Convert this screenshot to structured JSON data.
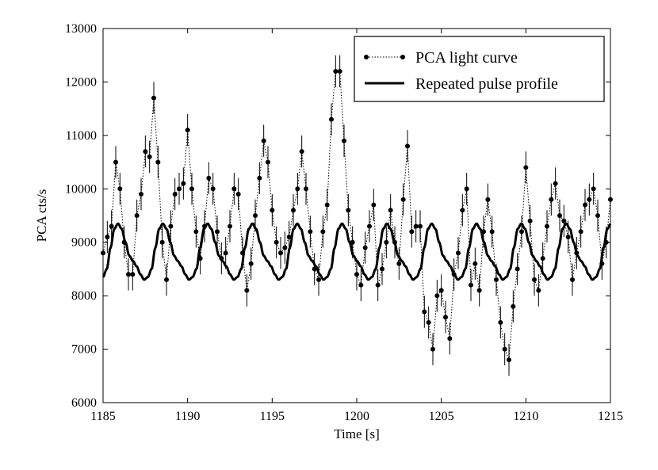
{
  "chart_data": {
    "type": "line",
    "title": "",
    "xlabel": "Time [s]",
    "ylabel": "PCA cts/s",
    "xlim": [
      1185,
      1215
    ],
    "ylim": [
      6000,
      13000
    ],
    "xticks": [
      1185,
      1190,
      1195,
      1200,
      1205,
      1210,
      1215
    ],
    "yticks": [
      6000,
      7000,
      8000,
      9000,
      10000,
      11000,
      12000,
      13000
    ],
    "legend_position": "top-right",
    "series": [
      {
        "name": "PCA light curve",
        "style": "dotted line with filled circle markers and error bars",
        "error": 300,
        "x": [
          1185.0,
          1185.25,
          1185.5,
          1185.75,
          1186.0,
          1186.25,
          1186.5,
          1186.75,
          1187.0,
          1187.25,
          1187.5,
          1187.75,
          1188.0,
          1188.25,
          1188.5,
          1188.75,
          1189.0,
          1189.25,
          1189.5,
          1189.75,
          1190.0,
          1190.25,
          1190.5,
          1190.75,
          1191.0,
          1191.25,
          1191.5,
          1191.75,
          1192.0,
          1192.25,
          1192.5,
          1192.75,
          1193.0,
          1193.25,
          1193.5,
          1193.75,
          1194.0,
          1194.25,
          1194.5,
          1194.75,
          1195.0,
          1195.25,
          1195.5,
          1195.75,
          1196.0,
          1196.25,
          1196.5,
          1196.75,
          1197.0,
          1197.25,
          1197.5,
          1197.75,
          1198.0,
          1198.25,
          1198.5,
          1198.75,
          1199.0,
          1199.25,
          1199.5,
          1199.75,
          1200.0,
          1200.25,
          1200.5,
          1200.75,
          1201.0,
          1201.25,
          1201.5,
          1201.75,
          1202.0,
          1202.25,
          1202.5,
          1202.75,
          1203.0,
          1203.25,
          1203.5,
          1203.75,
          1204.0,
          1204.25,
          1204.5,
          1204.75,
          1205.0,
          1205.25,
          1205.5,
          1205.75,
          1206.0,
          1206.25,
          1206.5,
          1206.75,
          1207.0,
          1207.25,
          1207.5,
          1207.75,
          1208.0,
          1208.25,
          1208.5,
          1208.75,
          1209.0,
          1209.25,
          1209.5,
          1209.75,
          1210.0,
          1210.25,
          1210.5,
          1210.75,
          1211.0,
          1211.25,
          1211.5,
          1211.75,
          1212.0,
          1212.25,
          1212.5,
          1212.75,
          1213.0,
          1213.25,
          1213.5,
          1213.75,
          1214.0,
          1214.25,
          1214.5,
          1214.75,
          1215.0
        ],
        "y": [
          8800,
          9100,
          9300,
          10500,
          10000,
          9000,
          8400,
          8400,
          9500,
          9900,
          10700,
          10600,
          11700,
          10500,
          9000,
          8300,
          9300,
          9900,
          10000,
          10100,
          11100,
          10000,
          9200,
          8700,
          9300,
          10200,
          10000,
          9200,
          8700,
          8800,
          9300,
          10000,
          9900,
          8800,
          8100,
          8600,
          9500,
          10200,
          10900,
          10500,
          9600,
          9000,
          8800,
          8900,
          9100,
          9600,
          10000,
          10700,
          10000,
          9200,
          8500,
          8300,
          9200,
          9700,
          11300,
          12200,
          12200,
          10900,
          9600,
          9000,
          8400,
          8200,
          8900,
          9300,
          9700,
          8200,
          8500,
          9000,
          9600,
          9000,
          8600,
          9800,
          10800,
          9200,
          9300,
          9300,
          7700,
          7500,
          7000,
          8000,
          8100,
          7600,
          7200,
          8400,
          8800,
          9600,
          10000,
          8200,
          8600,
          8100,
          9200,
          9800,
          9200,
          8300,
          7500,
          7000,
          6800,
          7800,
          8500,
          9200,
          10400,
          9400,
          8300,
          8100,
          8700,
          9300,
          9800,
          10100,
          9500,
          9400,
          9100,
          8300,
          8800,
          9200,
          9700,
          9800,
          10000,
          9500,
          8600,
          9000,
          9800
        ]
      },
      {
        "name": "Repeated pulse profile",
        "style": "thick solid line",
        "period": 2.65,
        "profile_phase": [
          0.0,
          0.083,
          0.167,
          0.25,
          0.333,
          0.417,
          0.5,
          0.583,
          0.667,
          0.75,
          0.833,
          0.917,
          1.0
        ],
        "profile_value": [
          8350,
          8500,
          8900,
          9250,
          9350,
          9250,
          9000,
          8750,
          8650,
          8550,
          8400,
          8300,
          8350
        ]
      }
    ]
  }
}
